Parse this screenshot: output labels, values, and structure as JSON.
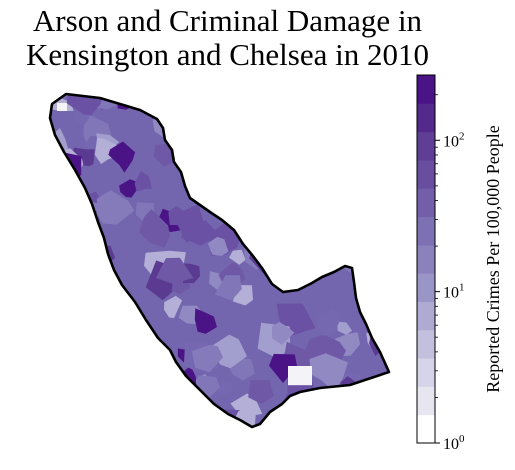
{
  "title": {
    "line1": "Arson and Criminal Damage in",
    "line2": "Kensington and Chelsea in 2010"
  },
  "colorbar": {
    "label": "Reported Crimes Per 100,000 People",
    "scale": "log",
    "range": [
      1,
      270
    ],
    "ticks": [
      {
        "base": "10",
        "exp": "0",
        "value": 1
      },
      {
        "base": "10",
        "exp": "1",
        "value": 10
      },
      {
        "base": "10",
        "exp": "2",
        "value": 100
      }
    ],
    "colors": [
      "#ffffff",
      "#e7e5f0",
      "#d6d4e8",
      "#c3c0dd",
      "#aeaad2",
      "#9a95c7",
      "#8a81bd",
      "#7d70b3",
      "#735ea9",
      "#694e9f",
      "#5f3e96",
      "#54298c",
      "#4a1486"
    ]
  }
}
